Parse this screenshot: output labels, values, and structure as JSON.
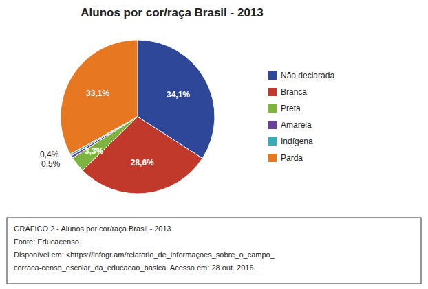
{
  "chart_data": {
    "type": "pie",
    "title": "Alunos por cor/raça Brasil - 2013",
    "categories": [
      "Não declarada",
      "Branca",
      "Preta",
      "Amarela",
      "Indígena",
      "Parda"
    ],
    "values": [
      34.1,
      28.6,
      3.3,
      0.5,
      0.4,
      33.1
    ],
    "value_labels": [
      "34,1%",
      "28,6%",
      "3,3%",
      "0,5%",
      "0,4%",
      "33,1%"
    ],
    "colors": [
      "#2E4799",
      "#C0392B",
      "#7DB33F",
      "#6B3FA0",
      "#3AACB8",
      "#E87722"
    ],
    "data_labels": true,
    "legend": "right",
    "annotations": [
      "GRÁFICO 2 - Alunos por cor/raça Brasil - 2013",
      "Fonte: Educacenso.",
      "Disponível em: <https://infogr.am/relatorio_de_informaçoes_sobre_o_campo_",
      "corraca-censo_escolar_da_educacao_basica. Acesso em: 28 out. 2016."
    ]
  }
}
